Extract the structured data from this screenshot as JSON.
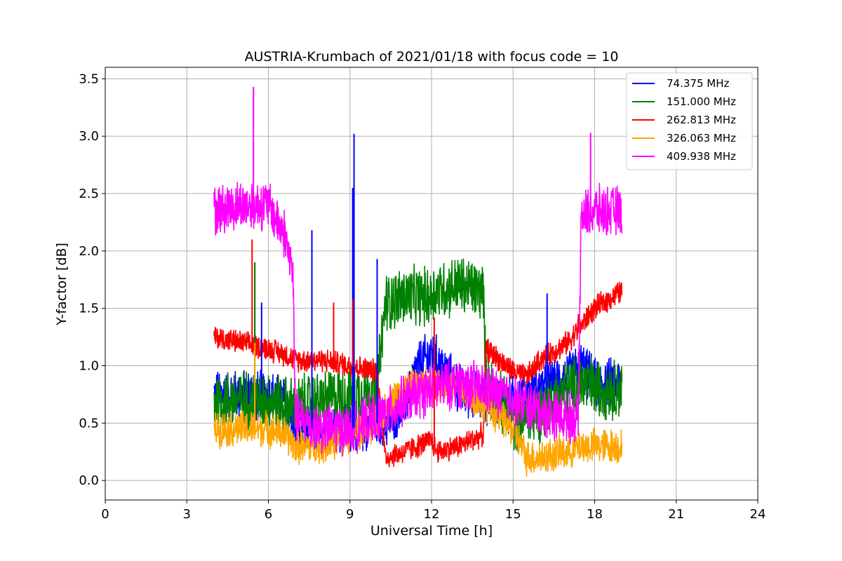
{
  "chart_data": {
    "type": "line",
    "title": "AUSTRIA-Krumbach of 2021/01/18 with focus code = 10",
    "xlabel": "Universal Time [h]",
    "ylabel": "Y-factor [dB]",
    "xlim": [
      0,
      24
    ],
    "ylim": [
      -0.17,
      3.6
    ],
    "xticks": [
      0,
      3,
      6,
      9,
      12,
      15,
      18,
      21,
      24
    ],
    "xtick_labels": [
      "0",
      "3",
      "6",
      "9",
      "12",
      "15",
      "18",
      "21",
      "24"
    ],
    "yticks": [
      0.0,
      0.5,
      1.0,
      1.5,
      2.0,
      2.5,
      3.0,
      3.5
    ],
    "ytick_labels": [
      "0.0",
      "0.5",
      "1.0",
      "1.5",
      "2.0",
      "2.5",
      "3.0",
      "3.5"
    ],
    "grid": true,
    "legend_position": "top-right",
    "series": [
      {
        "name": " 74.375 MHz",
        "color": "#0000ff",
        "noise": 0.25,
        "x": [
          4.0,
          5.0,
          6.0,
          6.6,
          7.0,
          8.0,
          9.0,
          10.0,
          10.3,
          11.0,
          11.5,
          12.0,
          12.5,
          13.0,
          13.5,
          14.0,
          15.0,
          16.0,
          17.0,
          17.5,
          18.0,
          19.0
        ],
        "y": [
          0.75,
          0.75,
          0.75,
          0.7,
          0.45,
          0.45,
          0.45,
          0.5,
          0.5,
          0.65,
          1.0,
          1.1,
          0.95,
          0.8,
          0.75,
          0.7,
          0.7,
          0.8,
          0.9,
          1.0,
          0.85,
          0.85
        ]
      },
      {
        "name": "151.000 MHz",
        "color": "#008000",
        "noise": 0.3,
        "x": [
          4.0,
          5.0,
          6.0,
          6.6,
          7.0,
          8.0,
          9.0,
          10.0,
          10.3,
          11.0,
          12.0,
          12.1,
          13.0,
          13.9,
          14.0,
          15.0,
          16.0,
          17.0,
          17.5,
          18.0,
          19.0
        ],
        "y": [
          0.7,
          0.7,
          0.7,
          0.65,
          0.65,
          0.7,
          0.75,
          0.8,
          1.55,
          1.6,
          1.6,
          1.65,
          1.7,
          1.65,
          0.9,
          0.5,
          0.6,
          0.8,
          0.85,
          0.8,
          0.8
        ]
      },
      {
        "name": "262.813 MHz",
        "color": "#ff0000",
        "noise": 0.12,
        "x": [
          4.0,
          5.0,
          6.0,
          6.6,
          7.0,
          8.0,
          9.0,
          10.0,
          10.3,
          11.0,
          12.0,
          12.2,
          13.0,
          13.9,
          14.0,
          15.0,
          15.5,
          16.0,
          17.0,
          17.5,
          18.0,
          19.0
        ],
        "y": [
          1.25,
          1.2,
          1.15,
          1.1,
          1.05,
          1.05,
          1.0,
          0.95,
          0.2,
          0.25,
          0.35,
          0.25,
          0.3,
          0.4,
          1.15,
          0.95,
          0.9,
          1.05,
          1.2,
          1.35,
          1.5,
          1.65
        ]
      },
      {
        "name": "326.063 MHz",
        "color": "#ffa500",
        "noise": 0.18,
        "x": [
          4.0,
          5.0,
          6.0,
          6.6,
          7.0,
          8.0,
          9.0,
          10.0,
          10.5,
          11.0,
          12.0,
          13.0,
          14.0,
          15.0,
          15.5,
          16.0,
          17.0,
          17.4,
          18.0,
          19.0
        ],
        "y": [
          0.45,
          0.45,
          0.45,
          0.4,
          0.3,
          0.3,
          0.4,
          0.5,
          0.7,
          0.8,
          0.85,
          0.8,
          0.65,
          0.45,
          0.2,
          0.2,
          0.25,
          0.3,
          0.3,
          0.3
        ]
      },
      {
        "name": "409.938 MHz",
        "color": "#ff00ff",
        "noise": 0.25,
        "x": [
          4.0,
          5.0,
          6.0,
          6.6,
          6.9,
          7.0,
          8.0,
          9.0,
          10.0,
          10.5,
          11.0,
          12.0,
          13.0,
          14.0,
          15.0,
          16.0,
          17.0,
          17.4,
          17.5,
          18.0,
          19.0
        ],
        "y": [
          2.35,
          2.4,
          2.4,
          2.15,
          1.8,
          0.55,
          0.45,
          0.45,
          0.55,
          0.6,
          0.7,
          0.8,
          0.85,
          0.8,
          0.7,
          0.6,
          0.55,
          0.55,
          2.3,
          2.35,
          2.35
        ]
      }
    ],
    "spikes": [
      {
        "series": 4,
        "x": 5.45,
        "y": 3.43
      },
      {
        "series": 4,
        "x": 17.85,
        "y": 3.03
      },
      {
        "series": 0,
        "x": 9.15,
        "y": 3.02
      },
      {
        "series": 0,
        "x": 7.6,
        "y": 2.18
      },
      {
        "series": 0,
        "x": 9.1,
        "y": 2.55
      },
      {
        "series": 0,
        "x": 10.0,
        "y": 1.93
      },
      {
        "series": 0,
        "x": 5.75,
        "y": 1.55
      },
      {
        "series": 0,
        "x": 16.25,
        "y": 1.63
      },
      {
        "series": 2,
        "x": 5.4,
        "y": 2.1
      },
      {
        "series": 2,
        "x": 5.5,
        "y": 1.9
      },
      {
        "series": 2,
        "x": 8.4,
        "y": 1.55
      },
      {
        "series": 2,
        "x": 9.1,
        "y": 1.58
      },
      {
        "series": 2,
        "x": 12.1,
        "y": 1.42
      },
      {
        "series": 2,
        "x": 17.4,
        "y": 1.45
      },
      {
        "series": 1,
        "x": 5.5,
        "y": 1.9
      },
      {
        "series": 3,
        "x": 5.5,
        "y": 1.2
      }
    ]
  }
}
